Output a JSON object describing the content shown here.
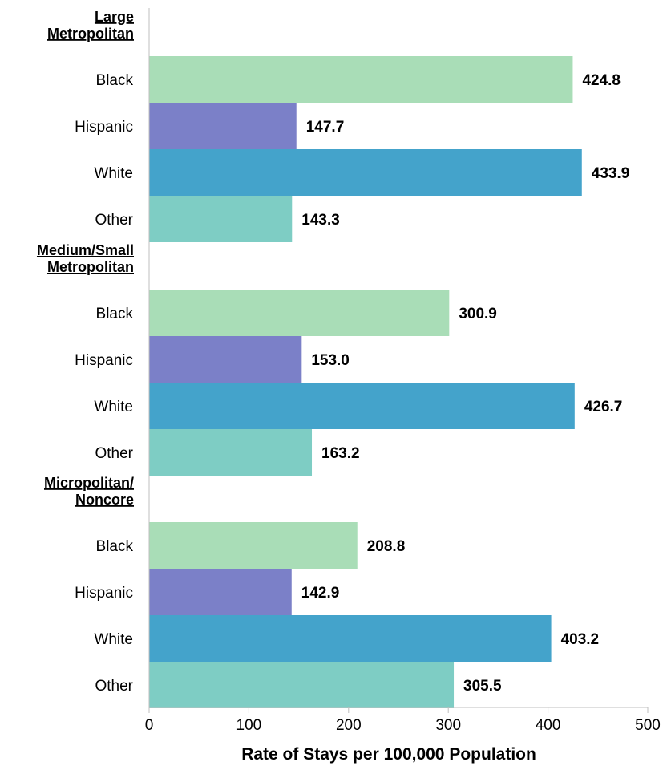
{
  "chart_data": {
    "type": "bar",
    "orientation": "horizontal",
    "xlabel": "Rate of Stays per 100,000 Population",
    "xlim": [
      0,
      500
    ],
    "xticks": [
      "0",
      "100",
      "200",
      "300",
      "400",
      "500"
    ],
    "grid": false,
    "legend": "none",
    "category_colors": {
      "Black": "#A9DDB7",
      "Hispanic": "#7B80C8",
      "White": "#44A3CB",
      "Other": "#7ECDC4"
    },
    "groups": [
      {
        "label_lines": [
          "Large",
          "Metropolitan"
        ],
        "bars": [
          {
            "category": "Black",
            "value": 424.8,
            "value_label": "424.8"
          },
          {
            "category": "Hispanic",
            "value": 147.7,
            "value_label": "147.7"
          },
          {
            "category": "White",
            "value": 433.9,
            "value_label": "433.9"
          },
          {
            "category": "Other",
            "value": 143.3,
            "value_label": "143.3"
          }
        ]
      },
      {
        "label_lines": [
          "Medium/Small",
          "Metropolitan"
        ],
        "bars": [
          {
            "category": "Black",
            "value": 300.9,
            "value_label": "300.9"
          },
          {
            "category": "Hispanic",
            "value": 153.0,
            "value_label": "153.0"
          },
          {
            "category": "White",
            "value": 426.7,
            "value_label": "426.7"
          },
          {
            "category": "Other",
            "value": 163.2,
            "value_label": "163.2"
          }
        ]
      },
      {
        "label_lines": [
          "Micropolitan/",
          "Noncore"
        ],
        "bars": [
          {
            "category": "Black",
            "value": 208.8,
            "value_label": "208.8"
          },
          {
            "category": "Hispanic",
            "value": 142.9,
            "value_label": "142.9"
          },
          {
            "category": "White",
            "value": 403.2,
            "value_label": "403.2"
          },
          {
            "category": "Other",
            "value": 305.5,
            "value_label": "305.5"
          }
        ]
      }
    ]
  }
}
